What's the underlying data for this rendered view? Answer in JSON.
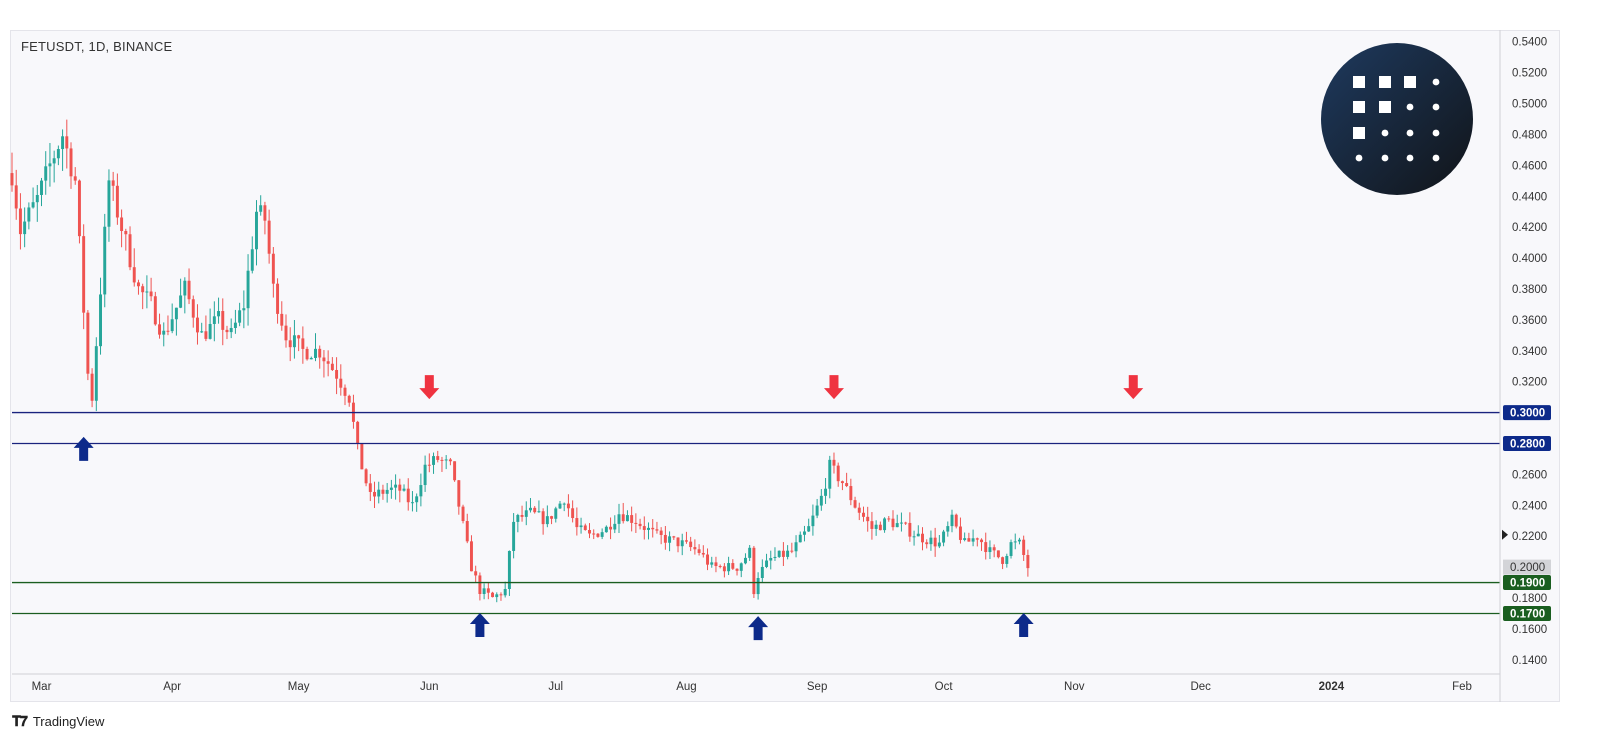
{
  "header": {
    "symbol_title": "FETUSDT, 1D, BINANCE"
  },
  "footer": {
    "brand": "TradingView",
    "brand_icon": "tradingview-logo-icon"
  },
  "logo": {
    "name": "fetch-ai-logo-icon",
    "colors": [
      "#1e3a5f",
      "#111418"
    ]
  },
  "colors": {
    "up_candle": "#26a69a",
    "down_candle": "#ef5350",
    "resistance_line": "#1a237e",
    "support_line": "#1b5e20",
    "resistance_badge": "#0d2a8a",
    "support_badge": "#1a5e20",
    "last_price_badge": "#d3d4d8",
    "arrow_up": "#0d2a8a",
    "arrow_down": "#ef3340"
  },
  "chart_data": {
    "type": "candlestick",
    "symbol": "FETUSDT",
    "interval": "1D",
    "exchange": "BINANCE",
    "ylim": [
      0.125,
      0.545
    ],
    "y_ticks": [
      "0.5400",
      "0.5200",
      "0.5000",
      "0.4800",
      "0.4600",
      "0.4400",
      "0.4200",
      "0.4000",
      "0.3800",
      "0.3600",
      "0.3400",
      "0.3200",
      "0.2600",
      "0.2400",
      "0.2200",
      "0.1800",
      "0.1600",
      "0.1400"
    ],
    "x_ticks": [
      {
        "label": "Mar",
        "date": "2023-03-01"
      },
      {
        "label": "Apr",
        "date": "2023-04-01"
      },
      {
        "label": "May",
        "date": "2023-05-01"
      },
      {
        "label": "Jun",
        "date": "2023-06-01"
      },
      {
        "label": "Jul",
        "date": "2023-07-01"
      },
      {
        "label": "Aug",
        "date": "2023-08-01"
      },
      {
        "label": "Sep",
        "date": "2023-09-01"
      },
      {
        "label": "Oct",
        "date": "2023-10-01"
      },
      {
        "label": "Nov",
        "date": "2023-11-01"
      },
      {
        "label": "Dec",
        "date": "2023-12-01"
      },
      {
        "label": "2024",
        "date": "2024-01-01",
        "bold": true
      },
      {
        "label": "Feb",
        "date": "2024-02-01"
      }
    ],
    "x_range": [
      "2023-02-22",
      "2024-02-10"
    ],
    "horizontal_levels": [
      {
        "price": 0.3,
        "label": "0.3000",
        "kind": "resistance"
      },
      {
        "price": 0.28,
        "label": "0.2800",
        "kind": "resistance"
      },
      {
        "price": 0.19,
        "label": "0.1900",
        "kind": "support"
      },
      {
        "price": 0.17,
        "label": "0.1700",
        "kind": "support"
      }
    ],
    "last_price": {
      "price": 0.2,
      "label": "0.2000"
    },
    "arrows": [
      {
        "date": "2023-03-11",
        "price": 0.2765,
        "direction": "up"
      },
      {
        "date": "2023-06-01",
        "price": 0.3165,
        "direction": "down"
      },
      {
        "date": "2023-06-13",
        "price": 0.1625,
        "direction": "up"
      },
      {
        "date": "2023-08-18",
        "price": 0.1605,
        "direction": "up"
      },
      {
        "date": "2023-09-05",
        "price": 0.3165,
        "direction": "down"
      },
      {
        "date": "2023-10-20",
        "price": 0.1625,
        "direction": "up"
      },
      {
        "date": "2023-11-15",
        "price": 0.3165,
        "direction": "down"
      }
    ],
    "anchors": [
      [
        "2023-02-22",
        0.455
      ],
      [
        "2023-02-24",
        0.418
      ],
      [
        "2023-02-28",
        0.438
      ],
      [
        "2023-03-03",
        0.46
      ],
      [
        "2023-03-06",
        0.48
      ],
      [
        "2023-03-09",
        0.45
      ],
      [
        "2023-03-12",
        0.325
      ],
      [
        "2023-03-13",
        0.31
      ],
      [
        "2023-03-15",
        0.38
      ],
      [
        "2023-03-17",
        0.45
      ],
      [
        "2023-03-20",
        0.42
      ],
      [
        "2023-03-24",
        0.38
      ],
      [
        "2023-03-27",
        0.37
      ],
      [
        "2023-03-30",
        0.35
      ],
      [
        "2023-04-04",
        0.38
      ],
      [
        "2023-04-08",
        0.35
      ],
      [
        "2023-04-12",
        0.36
      ],
      [
        "2023-04-15",
        0.35
      ],
      [
        "2023-04-18",
        0.37
      ],
      [
        "2023-04-21",
        0.43
      ],
      [
        "2023-04-23",
        0.425
      ],
      [
        "2023-04-25",
        0.38
      ],
      [
        "2023-04-28",
        0.35
      ],
      [
        "2023-05-02",
        0.34
      ],
      [
        "2023-05-06",
        0.34
      ],
      [
        "2023-05-10",
        0.325
      ],
      [
        "2023-05-13",
        0.31
      ],
      [
        "2023-05-15",
        0.275
      ],
      [
        "2023-05-18",
        0.245
      ],
      [
        "2023-05-22",
        0.25
      ],
      [
        "2023-05-25",
        0.25
      ],
      [
        "2023-05-28",
        0.24
      ],
      [
        "2023-05-31",
        0.265
      ],
      [
        "2023-06-03",
        0.27
      ],
      [
        "2023-06-06",
        0.265
      ],
      [
        "2023-06-08",
        0.24
      ],
      [
        "2023-06-11",
        0.2
      ],
      [
        "2023-06-13",
        0.185
      ],
      [
        "2023-06-16",
        0.18
      ],
      [
        "2023-06-19",
        0.185
      ],
      [
        "2023-06-21",
        0.23
      ],
      [
        "2023-06-25",
        0.235
      ],
      [
        "2023-06-29",
        0.23
      ],
      [
        "2023-07-03",
        0.245
      ],
      [
        "2023-07-06",
        0.225
      ],
      [
        "2023-07-09",
        0.22
      ],
      [
        "2023-07-13",
        0.225
      ],
      [
        "2023-07-16",
        0.235
      ],
      [
        "2023-07-20",
        0.23
      ],
      [
        "2023-07-25",
        0.22
      ],
      [
        "2023-07-31",
        0.215
      ],
      [
        "2023-08-04",
        0.21
      ],
      [
        "2023-08-07",
        0.2
      ],
      [
        "2023-08-10",
        0.2
      ],
      [
        "2023-08-13",
        0.2
      ],
      [
        "2023-08-16",
        0.21
      ],
      [
        "2023-08-17",
        0.185
      ],
      [
        "2023-08-18",
        0.195
      ],
      [
        "2023-08-21",
        0.205
      ],
      [
        "2023-08-26",
        0.21
      ],
      [
        "2023-08-30",
        0.225
      ],
      [
        "2023-09-02",
        0.245
      ],
      [
        "2023-09-04",
        0.265
      ],
      [
        "2023-09-07",
        0.255
      ],
      [
        "2023-09-10",
        0.24
      ],
      [
        "2023-09-14",
        0.225
      ],
      [
        "2023-09-18",
        0.23
      ],
      [
        "2023-09-22",
        0.225
      ],
      [
        "2023-09-25",
        0.22
      ],
      [
        "2023-09-30",
        0.215
      ],
      [
        "2023-10-03",
        0.23
      ],
      [
        "2023-10-06",
        0.215
      ],
      [
        "2023-10-09",
        0.22
      ],
      [
        "2023-10-12",
        0.21
      ],
      [
        "2023-10-15",
        0.205
      ],
      [
        "2023-10-17",
        0.215
      ],
      [
        "2023-10-19",
        0.215
      ],
      [
        "2023-10-21",
        0.2
      ]
    ]
  }
}
